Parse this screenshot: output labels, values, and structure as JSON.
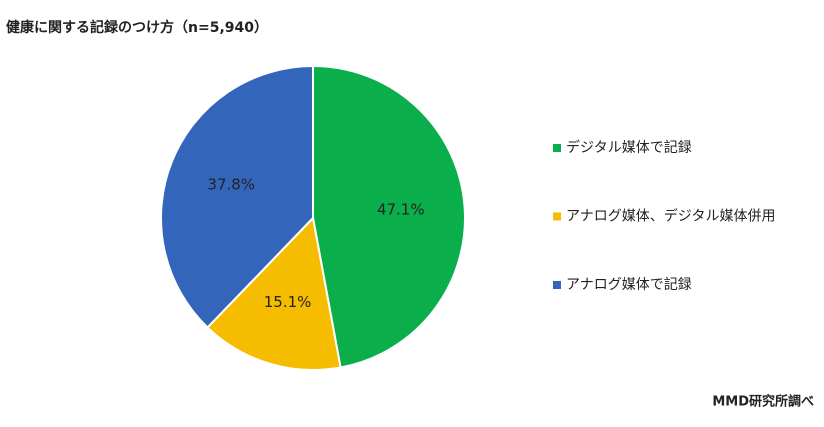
{
  "chart_data": {
    "type": "pie",
    "title": "健康に関する記録のつけ方（n=5,940）",
    "categories": [
      "デジタル媒体で記録",
      "アナログ媒体、デジタル媒体併用",
      "アナログ媒体で記録"
    ],
    "values": [
      47.1,
      15.1,
      37.8
    ],
    "value_labels": [
      "47.1%",
      "15.1%",
      "37.8%"
    ],
    "colors": [
      "#0aae4a",
      "#f5bc00",
      "#3366bb"
    ],
    "legend": "right",
    "source": "MMD研究所調べ"
  }
}
